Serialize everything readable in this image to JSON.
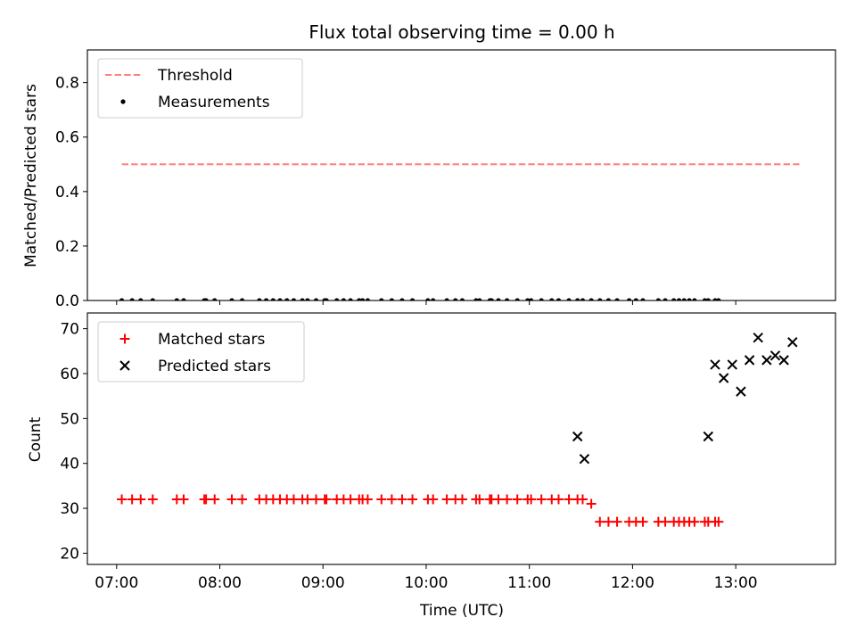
{
  "chart_data": [
    {
      "type": "scatter",
      "title": "Flux total observing time = 0.00 h",
      "ylabel": "Matched/Predicted stars",
      "xlim": [
        "06:43",
        "13:58"
      ],
      "ylim": [
        0.0,
        0.92
      ],
      "yticks": [
        0.0,
        0.2,
        0.4,
        0.6,
        0.8
      ],
      "ytick_labels": [
        "0.0",
        "0.2",
        "0.4",
        "0.6",
        "0.8"
      ],
      "legend": "upper left",
      "series": [
        {
          "name": "Threshold",
          "kind": "line",
          "style": "dashed",
          "color": "#ff7f7f",
          "x": [
            "07:03",
            "13:37"
          ],
          "y": [
            0.5,
            0.5
          ]
        },
        {
          "name": "Measurements",
          "kind": "scatter",
          "marker": "dot",
          "color": "#000000",
          "x": [
            "07:03",
            "07:09",
            "07:14",
            "07:21",
            "07:35",
            "07:39",
            "07:51",
            "07:52",
            "07:57",
            "08:07",
            "08:13",
            "08:23",
            "08:27",
            "08:31",
            "08:35",
            "08:39",
            "08:43",
            "08:48",
            "08:51",
            "08:56",
            "09:01",
            "09:02",
            "09:08",
            "09:12",
            "09:16",
            "09:21",
            "09:23",
            "09:26",
            "09:34",
            "09:40",
            "09:46",
            "09:52",
            "10:01",
            "10:04",
            "10:12",
            "10:17",
            "10:21",
            "10:29",
            "10:31",
            "10:37",
            "10:38",
            "10:42",
            "10:47",
            "10:53",
            "10:59",
            "11:01",
            "11:07",
            "11:13",
            "11:17",
            "11:23",
            "11:28",
            "11:31",
            "11:36",
            "11:41",
            "11:46",
            "11:51",
            "11:58",
            "12:02",
            "12:06",
            "12:15",
            "12:19",
            "12:24",
            "12:27",
            "12:30",
            "12:33",
            "12:36",
            "12:42",
            "12:44",
            "12:48",
            "12:50"
          ],
          "y": [
            0.0,
            0.0,
            0.0,
            0.0,
            0.0,
            0.0,
            0.0,
            0.0,
            0.0,
            0.0,
            0.0,
            0.0,
            0.0,
            0.0,
            0.0,
            0.0,
            0.0,
            0.0,
            0.0,
            0.0,
            0.0,
            0.0,
            0.0,
            0.0,
            0.0,
            0.0,
            0.0,
            0.0,
            0.0,
            0.0,
            0.0,
            0.0,
            0.0,
            0.0,
            0.0,
            0.0,
            0.0,
            0.0,
            0.0,
            0.0,
            0.0,
            0.0,
            0.0,
            0.0,
            0.0,
            0.0,
            0.0,
            0.0,
            0.0,
            0.0,
            0.0,
            0.0,
            0.0,
            0.0,
            0.0,
            0.0,
            0.0,
            0.0,
            0.0,
            0.0,
            0.0,
            0.0,
            0.0,
            0.0,
            0.0,
            0.0,
            0.0,
            0.0,
            0.0,
            0.0
          ]
        }
      ]
    },
    {
      "type": "scatter",
      "xlabel": "Time (UTC)",
      "ylabel": "Count",
      "xlim": [
        "06:43",
        "13:58"
      ],
      "ylim": [
        17.5,
        73.5
      ],
      "xticks": [
        "07:00",
        "08:00",
        "09:00",
        "10:00",
        "11:00",
        "12:00",
        "13:00"
      ],
      "xtick_labels": [
        "07:00",
        "08:00",
        "09:00",
        "10:00",
        "11:00",
        "12:00",
        "13:00"
      ],
      "yticks": [
        20,
        30,
        40,
        50,
        60,
        70
      ],
      "ytick_labels": [
        "20",
        "30",
        "40",
        "50",
        "60",
        "70"
      ],
      "legend": "upper left",
      "series": [
        {
          "name": "Matched stars",
          "marker": "plus",
          "color": "#ff0000",
          "x": [
            "07:03",
            "07:09",
            "07:14",
            "07:21",
            "07:35",
            "07:39",
            "07:51",
            "07:52",
            "07:57",
            "08:07",
            "08:13",
            "08:23",
            "08:27",
            "08:31",
            "08:35",
            "08:39",
            "08:43",
            "08:48",
            "08:51",
            "08:56",
            "09:01",
            "09:02",
            "09:08",
            "09:12",
            "09:16",
            "09:21",
            "09:23",
            "09:26",
            "09:34",
            "09:40",
            "09:46",
            "09:52",
            "10:01",
            "10:04",
            "10:12",
            "10:17",
            "10:21",
            "10:29",
            "10:31",
            "10:37",
            "10:38",
            "10:42",
            "10:47",
            "10:53",
            "10:59",
            "11:01",
            "11:07",
            "11:13",
            "11:17",
            "11:23",
            "11:28",
            "11:31",
            "11:36",
            "11:41",
            "11:46",
            "11:51",
            "11:58",
            "12:02",
            "12:06",
            "12:15",
            "12:19",
            "12:24",
            "12:27",
            "12:30",
            "12:33",
            "12:36",
            "12:42",
            "12:44",
            "12:48",
            "12:50"
          ],
          "y": [
            32,
            32,
            32,
            32,
            32,
            32,
            32,
            32,
            32,
            32,
            32,
            32,
            32,
            32,
            32,
            32,
            32,
            32,
            32,
            32,
            32,
            32,
            32,
            32,
            32,
            32,
            32,
            32,
            32,
            32,
            32,
            32,
            32,
            32,
            32,
            32,
            32,
            32,
            32,
            32,
            32,
            32,
            32,
            32,
            32,
            32,
            32,
            32,
            32,
            32,
            32,
            32,
            31,
            27,
            27,
            27,
            27,
            27,
            27,
            27,
            27,
            27,
            27,
            27,
            27,
            27,
            27,
            27,
            27,
            27
          ]
        },
        {
          "name": "Predicted stars",
          "marker": "x",
          "color": "#000000",
          "x": [
            "11:28",
            "11:32",
            "12:44",
            "12:48",
            "12:53",
            "12:58",
            "13:03",
            "13:08",
            "13:13",
            "13:18",
            "13:23",
            "13:28",
            "13:33"
          ],
          "y": [
            46,
            41,
            46,
            62,
            59,
            62,
            56,
            63,
            68,
            63,
            64,
            63,
            67
          ]
        }
      ]
    }
  ]
}
